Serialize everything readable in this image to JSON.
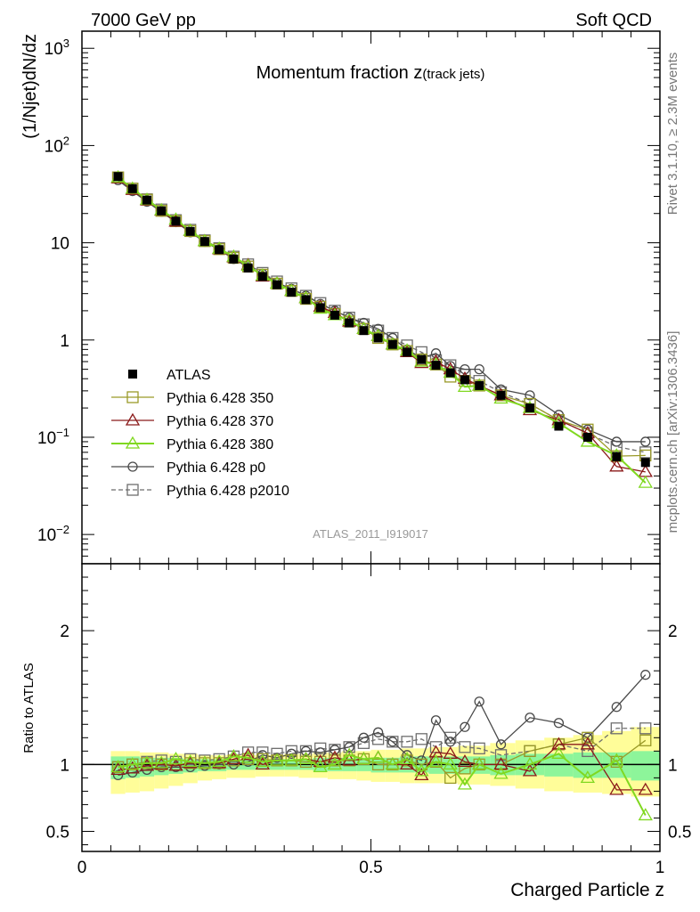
{
  "header": {
    "left": "7000 GeV pp",
    "right": "Soft QCD"
  },
  "side_labels": {
    "rivet": "Rivet 3.1.10, ≥ 2.3M events",
    "mcplots": "mcplots.cern.ch [arXiv:1306.3436]"
  },
  "chart_data": [
    {
      "type": "line",
      "title": "Momentum fraction z",
      "title_sub": "(track jets)",
      "analysis_id": "ATLAS_2011_I919017",
      "xlabel": "Charged Particle z",
      "ylabel": "(1/Njet)dN/dz",
      "log_y": true,
      "xlim": [
        0,
        1
      ],
      "ylim": [
        0.005,
        1500
      ],
      "yticks": [
        {
          "v": 0.01,
          "m": "10",
          "e": "−2"
        },
        {
          "v": 0.1,
          "m": "10",
          "e": "−1"
        },
        {
          "v": 1,
          "m": "1",
          "e": ""
        },
        {
          "v": 10,
          "m": "10",
          "e": ""
        },
        {
          "v": 100,
          "m": "10",
          "e": "2"
        },
        {
          "v": 1000,
          "m": "10",
          "e": "3"
        }
      ],
      "x": [
        0.0625,
        0.0875,
        0.1125,
        0.1375,
        0.1625,
        0.1875,
        0.2125,
        0.2375,
        0.2625,
        0.2875,
        0.3125,
        0.3375,
        0.3625,
        0.3875,
        0.4125,
        0.4375,
        0.4625,
        0.4875,
        0.5125,
        0.5375,
        0.5625,
        0.5875,
        0.6125,
        0.6375,
        0.6625,
        0.6875,
        0.725,
        0.775,
        0.825,
        0.875,
        0.925,
        0.975
      ],
      "legend": [
        {
          "name": "ATLAS",
          "color": "#000000",
          "marker": "filled-square",
          "line": "none"
        },
        {
          "name": "Pythia 6.428 350",
          "color": "#9a9a28",
          "marker": "open-square",
          "line": "solid"
        },
        {
          "name": "Pythia 6.428 370",
          "color": "#8b1a1a",
          "marker": "open-triangle",
          "line": "solid"
        },
        {
          "name": "Pythia 6.428 380",
          "color": "#80d820",
          "marker": "open-triangle",
          "line": "solid"
        },
        {
          "name": "Pythia 6.428 p0",
          "color": "#4a4a4a",
          "marker": "open-circle",
          "line": "solid"
        },
        {
          "name": "Pythia 6.428 p2010",
          "color": "#6e6e6e",
          "marker": "open-square",
          "line": "dashed"
        }
      ],
      "series": [
        {
          "name": "ATLAS",
          "values": [
            48,
            36,
            27.5,
            21.3,
            16.7,
            13.1,
            10.3,
            8.5,
            6.8,
            5.5,
            4.5,
            3.7,
            3.1,
            2.6,
            2.15,
            1.8,
            1.5,
            1.25,
            1.05,
            0.9,
            0.75,
            0.63,
            0.55,
            0.46,
            0.39,
            0.34,
            0.27,
            0.2,
            0.13,
            0.1,
            0.063,
            0.055
          ]
        },
        {
          "name": "Pythia 6.428 350",
          "values": [
            47,
            36,
            27.7,
            21.3,
            16.7,
            13.2,
            10.4,
            8.6,
            7.0,
            5.7,
            4.7,
            3.8,
            3.2,
            2.65,
            2.2,
            1.85,
            1.55,
            1.3,
            1.05,
            0.9,
            0.77,
            0.63,
            0.56,
            0.42,
            0.38,
            0.34,
            0.27,
            0.22,
            0.15,
            0.12,
            0.064,
            0.065
          ]
        },
        {
          "name": "Pythia 6.428 370",
          "values": [
            46,
            35,
            27.4,
            21.4,
            16.5,
            13.3,
            10.4,
            8.6,
            7.1,
            5.9,
            4.5,
            3.8,
            3.2,
            2.7,
            2.2,
            1.9,
            1.55,
            1.3,
            1.1,
            0.9,
            0.75,
            0.58,
            0.6,
            0.5,
            0.4,
            0.34,
            0.27,
            0.19,
            0.15,
            0.11,
            0.05,
            0.044
          ]
        },
        {
          "name": "Pythia 6.428 380",
          "values": [
            47,
            36,
            27.7,
            21.6,
            17.3,
            13.3,
            10.4,
            8.7,
            7.2,
            5.8,
            4.6,
            3.8,
            3.2,
            2.7,
            2.1,
            1.8,
            1.6,
            1.3,
            1.1,
            0.9,
            0.78,
            0.6,
            0.56,
            0.46,
            0.33,
            0.34,
            0.25,
            0.2,
            0.14,
            0.09,
            0.065,
            0.034
          ]
        },
        {
          "name": "Pythia 6.428 p0",
          "values": [
            44,
            34,
            26.4,
            20.8,
            16.3,
            12.8,
            10.2,
            8.5,
            6.8,
            5.6,
            4.8,
            3.9,
            3.35,
            2.85,
            2.35,
            2.0,
            1.7,
            1.5,
            1.3,
            1.05,
            0.8,
            0.65,
            0.73,
            0.54,
            0.5,
            0.5,
            0.31,
            0.27,
            0.17,
            0.12,
            0.09,
            0.09
          ]
        },
        {
          "name": "Pythia 6.428 p2010",
          "values": [
            47,
            36,
            28,
            22,
            17.1,
            13.6,
            10.6,
            8.8,
            7.2,
            6.0,
            4.9,
            4.0,
            3.4,
            2.85,
            2.4,
            2.0,
            1.7,
            1.45,
            1.25,
            1.05,
            0.88,
            0.75,
            0.62,
            0.55,
            0.44,
            0.38,
            0.29,
            0.22,
            0.15,
            0.11,
            0.08,
            0.07
          ]
        }
      ]
    },
    {
      "type": "line",
      "ylabel": "Ratio to ATLAS",
      "xlim": [
        0,
        1
      ],
      "ylim": [
        0.35,
        2.5
      ],
      "xticks": [
        0,
        0.5,
        1
      ],
      "yticks": [
        0.5,
        1,
        2
      ],
      "stat_band": {
        "lo": [
          0.89,
          0.9,
          0.91,
          0.92,
          0.93,
          0.94,
          0.95,
          0.95,
          0.96,
          0.96,
          0.96,
          0.96,
          0.96,
          0.96,
          0.95,
          0.95,
          0.95,
          0.95,
          0.94,
          0.94,
          0.94,
          0.94,
          0.93,
          0.93,
          0.93,
          0.93,
          0.92,
          0.92,
          0.91,
          0.9,
          0.9,
          0.88
        ],
        "hi": [
          1.06,
          1.06,
          1.05,
          1.05,
          1.05,
          1.04,
          1.04,
          1.04,
          1.04,
          1.04,
          1.04,
          1.04,
          1.04,
          1.04,
          1.05,
          1.05,
          1.05,
          1.05,
          1.05,
          1.05,
          1.06,
          1.06,
          1.06,
          1.06,
          1.06,
          1.06,
          1.07,
          1.08,
          1.08,
          1.09,
          1.09,
          1.1
        ]
      },
      "total_band": {
        "lo": [
          0.78,
          0.79,
          0.8,
          0.82,
          0.84,
          0.86,
          0.88,
          0.89,
          0.9,
          0.9,
          0.91,
          0.91,
          0.91,
          0.9,
          0.9,
          0.89,
          0.89,
          0.88,
          0.87,
          0.87,
          0.86,
          0.86,
          0.86,
          0.86,
          0.85,
          0.85,
          0.84,
          0.82,
          0.8,
          0.79,
          0.78,
          0.76
        ],
        "hi": [
          1.1,
          1.1,
          1.09,
          1.09,
          1.08,
          1.08,
          1.07,
          1.07,
          1.07,
          1.07,
          1.07,
          1.07,
          1.08,
          1.08,
          1.09,
          1.09,
          1.1,
          1.1,
          1.11,
          1.11,
          1.12,
          1.12,
          1.13,
          1.13,
          1.14,
          1.14,
          1.16,
          1.18,
          1.2,
          1.22,
          1.25,
          1.28
        ]
      },
      "series": [
        {
          "name": "Pythia 6.428 350",
          "values": [
            0.98,
            1.0,
            1.01,
            1.0,
            1.0,
            1.01,
            1.01,
            1.01,
            1.03,
            1.04,
            1.04,
            1.03,
            1.03,
            1.02,
            1.02,
            1.03,
            1.03,
            1.04,
            1.0,
            1.0,
            1.03,
            1.0,
            1.02,
            0.9,
            0.97,
            1.0,
            1.0,
            1.1,
            1.15,
            1.2,
            1.02,
            1.18
          ]
        },
        {
          "name": "Pythia 6.428 370",
          "values": [
            0.96,
            0.97,
            0.99,
            1.0,
            0.99,
            1.01,
            1.01,
            1.01,
            1.04,
            1.07,
            1.0,
            1.03,
            1.03,
            1.04,
            1.02,
            1.05,
            1.03,
            1.04,
            1.05,
            1.0,
            1.0,
            0.92,
            1.09,
            1.08,
            1.02,
            1.0,
            1.0,
            0.95,
            1.15,
            1.15,
            0.81,
            0.81
          ]
        },
        {
          "name": "Pythia 6.428 380",
          "values": [
            0.98,
            1.0,
            1.01,
            1.01,
            1.04,
            1.02,
            1.01,
            1.02,
            1.06,
            1.05,
            1.02,
            1.03,
            1.03,
            1.04,
            0.98,
            1.0,
            1.07,
            1.04,
            1.05,
            1.0,
            1.04,
            0.95,
            1.02,
            1.0,
            0.85,
            1.0,
            0.93,
            1.0,
            1.08,
            0.9,
            1.03,
            0.62
          ]
        },
        {
          "name": "Pythia 6.428 p0",
          "values": [
            0.92,
            0.94,
            0.96,
            0.98,
            0.98,
            0.98,
            0.99,
            1.0,
            1.0,
            1.02,
            1.07,
            1.05,
            1.08,
            1.1,
            1.09,
            1.11,
            1.13,
            1.2,
            1.24,
            1.17,
            1.07,
            1.03,
            1.33,
            1.17,
            1.28,
            1.47,
            1.15,
            1.35,
            1.31,
            1.2,
            1.43,
            1.67
          ]
        },
        {
          "name": "Pythia 6.428 p2010",
          "values": [
            0.98,
            1.0,
            1.02,
            1.03,
            1.02,
            1.04,
            1.03,
            1.04,
            1.06,
            1.09,
            1.09,
            1.08,
            1.1,
            1.1,
            1.12,
            1.11,
            1.13,
            1.16,
            1.19,
            1.17,
            1.17,
            1.19,
            1.13,
            1.2,
            1.13,
            1.12,
            1.07,
            1.1,
            1.15,
            1.1,
            1.27,
            1.27
          ]
        }
      ]
    }
  ]
}
